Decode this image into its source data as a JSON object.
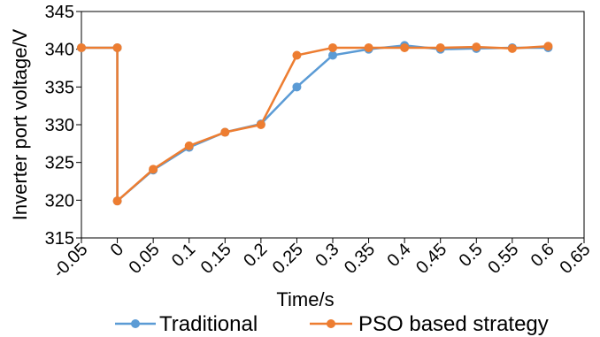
{
  "chart_data": {
    "type": "line",
    "xlabel": "Time/s",
    "ylabel": "Inverter port voltage/V",
    "xlim": [
      -0.05,
      0.65
    ],
    "ylim": [
      315,
      345
    ],
    "x_ticks": [
      "-0.05",
      "0",
      "0.05",
      "0.1",
      "0.15",
      "0.2",
      "0.25",
      "0.3",
      "0.35",
      "0.4",
      "0.45",
      "0.5",
      "0.55",
      "0.6",
      "0.65"
    ],
    "y_ticks": [
      "315",
      "320",
      "325",
      "330",
      "335",
      "340",
      "345"
    ],
    "grid": false,
    "legend_position": "bottom",
    "series": [
      {
        "name": "Traditional",
        "color": "#5b9bd5",
        "points": [
          [
            -0.05,
            340.2
          ],
          [
            0,
            340.2
          ],
          [
            0,
            319.9
          ],
          [
            0.05,
            324.0
          ],
          [
            0.1,
            327.0
          ],
          [
            0.15,
            329.0
          ],
          [
            0.2,
            330.1
          ],
          [
            0.25,
            335.0
          ],
          [
            0.3,
            339.2
          ],
          [
            0.35,
            340.0
          ],
          [
            0.4,
            340.5
          ],
          [
            0.45,
            340.0
          ],
          [
            0.5,
            340.1
          ],
          [
            0.55,
            340.2
          ],
          [
            0.6,
            340.2
          ]
        ]
      },
      {
        "name": "PSO based strategy",
        "color": "#ed7d31",
        "points": [
          [
            -0.05,
            340.2
          ],
          [
            0,
            340.2
          ],
          [
            0,
            319.9
          ],
          [
            0.05,
            324.1
          ],
          [
            0.1,
            327.2
          ],
          [
            0.15,
            329.0
          ],
          [
            0.2,
            330.0
          ],
          [
            0.25,
            339.2
          ],
          [
            0.3,
            340.2
          ],
          [
            0.35,
            340.2
          ],
          [
            0.4,
            340.2
          ],
          [
            0.45,
            340.2
          ],
          [
            0.5,
            340.3
          ],
          [
            0.55,
            340.1
          ],
          [
            0.6,
            340.4
          ]
        ]
      }
    ]
  }
}
